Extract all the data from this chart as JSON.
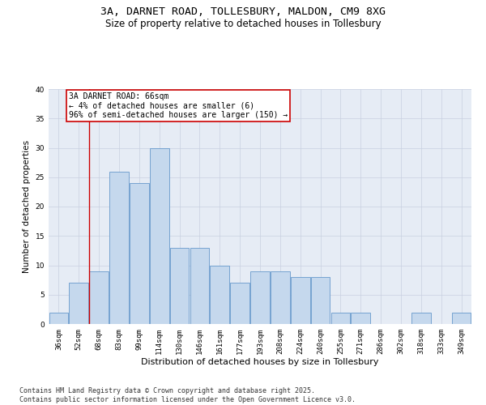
{
  "title": "3A, DARNET ROAD, TOLLESBURY, MALDON, CM9 8XG",
  "subtitle": "Size of property relative to detached houses in Tollesbury",
  "xlabel": "Distribution of detached houses by size in Tollesbury",
  "ylabel": "Number of detached properties",
  "categories": [
    "36sqm",
    "52sqm",
    "68sqm",
    "83sqm",
    "99sqm",
    "114sqm",
    "130sqm",
    "146sqm",
    "161sqm",
    "177sqm",
    "193sqm",
    "208sqm",
    "224sqm",
    "240sqm",
    "255sqm",
    "271sqm",
    "286sqm",
    "302sqm",
    "318sqm",
    "333sqm",
    "349sqm"
  ],
  "values": [
    2,
    7,
    9,
    26,
    24,
    30,
    13,
    13,
    10,
    7,
    9,
    9,
    8,
    8,
    2,
    2,
    0,
    0,
    2,
    0,
    2
  ],
  "bar_color": "#c5d8ed",
  "bar_edge_color": "#6699cc",
  "vline_x_index": 2,
  "vline_color": "#cc0000",
  "annotation_text": "3A DARNET ROAD: 66sqm\n← 4% of detached houses are smaller (6)\n96% of semi-detached houses are larger (150) →",
  "annotation_box_color": "#cc0000",
  "ylim": [
    0,
    40
  ],
  "yticks": [
    0,
    5,
    10,
    15,
    20,
    25,
    30,
    35,
    40
  ],
  "grid_color": "#c8d0e0",
  "bg_color": "#e6ecf5",
  "footer": "Contains HM Land Registry data © Crown copyright and database right 2025.\nContains public sector information licensed under the Open Government Licence v3.0.",
  "title_fontsize": 9.5,
  "subtitle_fontsize": 8.5,
  "xlabel_fontsize": 8,
  "ylabel_fontsize": 7.5,
  "tick_fontsize": 6.5,
  "annotation_fontsize": 7,
  "footer_fontsize": 6
}
